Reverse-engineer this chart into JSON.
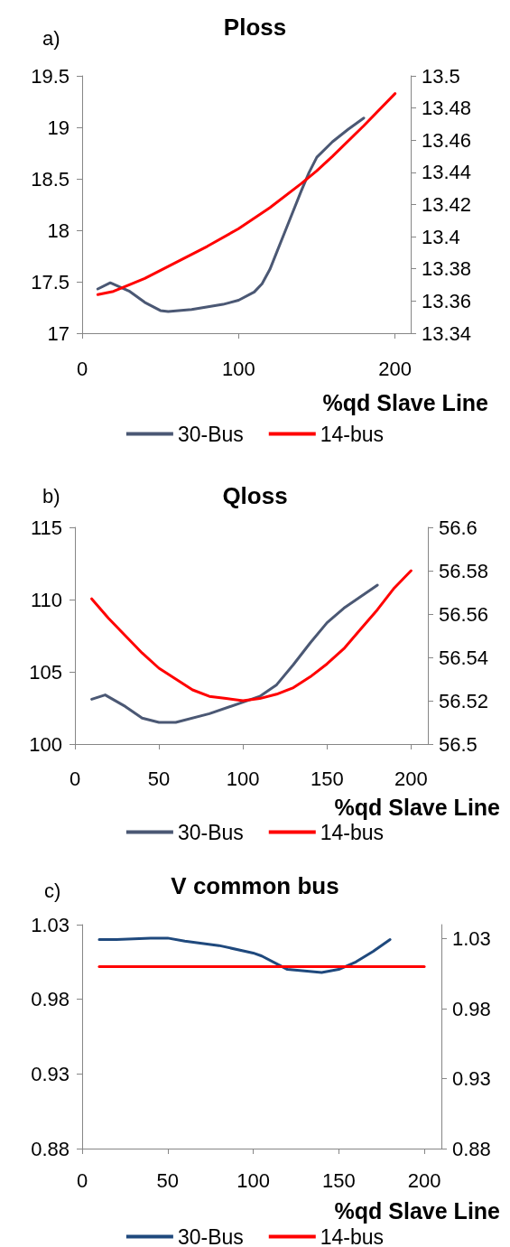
{
  "chart_data": [
    {
      "type": "line",
      "title": "Ploss",
      "xlabel": "%qd Slave Line",
      "annotations": [
        "a)"
      ],
      "xlim": [
        0,
        210
      ],
      "xticks": [
        0,
        100,
        200
      ],
      "ylim": [
        17,
        19.5
      ],
      "yticks": [
        17,
        17.5,
        18,
        18.5,
        19,
        19.5
      ],
      "y2lim": [
        13.34,
        13.5
      ],
      "y2ticks": [
        13.34,
        13.36,
        13.38,
        13.4,
        13.42,
        13.44,
        13.46,
        13.48,
        13.5
      ],
      "legend": "bottom",
      "marker": "none",
      "series": [
        {
          "name": "30-Bus",
          "color": "#4b5874",
          "x": [
            10,
            18,
            30,
            40,
            50,
            55,
            70,
            90,
            100,
            110,
            115,
            120,
            125,
            130,
            140,
            145,
            150,
            160,
            170,
            180
          ],
          "values": [
            17.43,
            17.49,
            17.41,
            17.3,
            17.22,
            17.21,
            17.23,
            17.28,
            17.32,
            17.4,
            17.48,
            17.62,
            17.81,
            18.0,
            18.38,
            18.56,
            18.71,
            18.86,
            18.98,
            19.09
          ]
        },
        {
          "name": "14-bus",
          "color": "#ff0000",
          "axis": "y2",
          "x": [
            10,
            20,
            40,
            60,
            80,
            100,
            120,
            140,
            150,
            160,
            180,
            200
          ],
          "values": [
            13.364,
            13.366,
            13.374,
            13.384,
            13.394,
            13.405,
            13.418,
            13.433,
            13.441,
            13.45,
            13.469,
            13.489
          ]
        }
      ]
    },
    {
      "type": "line",
      "title": "Qloss",
      "xlabel": "%qd Slave Line",
      "annotations": [
        "b)"
      ],
      "xlim": [
        0,
        210
      ],
      "xticks": [
        0,
        50,
        100,
        150,
        200
      ],
      "ylim": [
        100,
        115
      ],
      "yticks": [
        100,
        105,
        110,
        115
      ],
      "y2lim": [
        56.5,
        56.6
      ],
      "y2ticks": [
        56.5,
        56.52,
        56.54,
        56.56,
        56.58,
        56.6
      ],
      "legend": "bottom",
      "marker": "none",
      "series": [
        {
          "name": "30-Bus",
          "color": "#4b5874",
          "x": [
            10,
            18,
            30,
            40,
            50,
            60,
            80,
            100,
            110,
            120,
            130,
            140,
            150,
            160,
            170,
            180
          ],
          "values": [
            103.1,
            103.4,
            102.6,
            101.8,
            101.5,
            101.5,
            102.1,
            102.9,
            103.3,
            104.1,
            105.5,
            107.0,
            108.4,
            109.4,
            110.2,
            111.0
          ]
        },
        {
          "name": "14-bus",
          "color": "#ff0000",
          "axis": "y2",
          "x": [
            10,
            20,
            30,
            40,
            50,
            60,
            70,
            80,
            90,
            100,
            110,
            120,
            130,
            140,
            150,
            160,
            170,
            180,
            190,
            200
          ],
          "values": [
            56.567,
            56.558,
            56.55,
            56.542,
            56.535,
            56.53,
            56.525,
            56.522,
            56.521,
            56.52,
            56.521,
            56.523,
            56.526,
            56.531,
            56.537,
            56.544,
            56.553,
            56.562,
            56.572,
            56.58
          ]
        }
      ]
    },
    {
      "type": "line",
      "title": "V common bus",
      "xlabel": "%qd Slave Line",
      "annotations": [
        "c)"
      ],
      "xlim": [
        0,
        210
      ],
      "xticks": [
        0,
        50,
        100,
        150,
        200
      ],
      "ylim": [
        0.88,
        1.03
      ],
      "yticks": [
        0.88,
        0.93,
        0.98,
        1.03
      ],
      "y2lim": [
        0.88,
        1.04
      ],
      "y2ticks": [
        0.88,
        0.93,
        0.98,
        1.03
      ],
      "legend": "bottom",
      "marker": "none",
      "series": [
        {
          "name": "30-Bus",
          "color": "#1f497d",
          "x": [
            10,
            20,
            40,
            50,
            60,
            80,
            100,
            105,
            115,
            120,
            130,
            140,
            150,
            160,
            170,
            180
          ],
          "values": [
            1.02,
            1.02,
            1.021,
            1.021,
            1.019,
            1.016,
            1.011,
            1.009,
            1.003,
            1.0,
            0.999,
            0.998,
            1.0,
            1.005,
            1.012,
            1.02
          ]
        },
        {
          "name": "14-bus",
          "color": "#ff0000",
          "axis": "y2",
          "x": [
            10,
            50,
            100,
            150,
            200
          ],
          "values": [
            1.01,
            1.01,
            1.01,
            1.01,
            1.01
          ]
        }
      ]
    }
  ]
}
